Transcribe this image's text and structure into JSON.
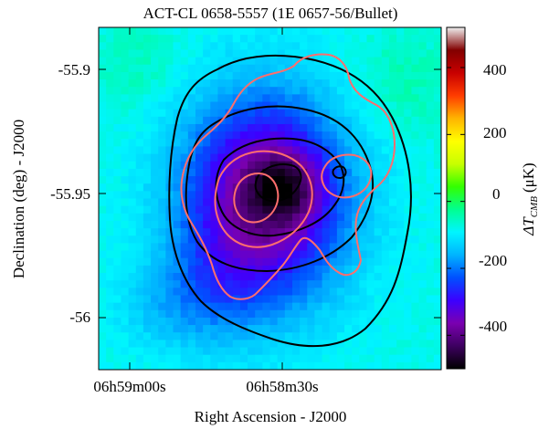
{
  "chart_data": {
    "type": "heatmap",
    "title": "ACT-CL 0658-5557 (1E 0657-56/Bullet)",
    "xlabel": "Right Ascension - J2000",
    "ylabel": "Declination (deg) - J2000",
    "x_ticks": [
      "06h59m00s",
      "06h58m30s"
    ],
    "y_ticks": [
      "-55.9",
      "-55.95",
      "-56"
    ],
    "ylim": [
      -56.02,
      -55.885
    ],
    "colorbar": {
      "label_main": "ΔT",
      "label_sub": "CMB",
      "label_unit": "(μK)",
      "range": [
        -500,
        520
      ],
      "ticks": [
        "400",
        "200",
        "0",
        "-200",
        "-400"
      ],
      "tick_values": [
        400,
        200,
        0,
        -200,
        -400
      ],
      "colormap": [
        "#000000",
        "#3d0060",
        "#7a00b0",
        "#3c00ff",
        "#0050ff",
        "#00b4ff",
        "#00f5ff",
        "#00ff90",
        "#33ff00",
        "#c8ff00",
        "#ffff00",
        "#ffb400",
        "#ff3c00",
        "#c80000",
        "#820000",
        "#f0f0f0"
      ]
    },
    "background_level_uK": -80,
    "decrement_peak_uK": -520,
    "contour_series": [
      {
        "color": "#000000",
        "levels": 4
      },
      {
        "color": "#ff6e6e",
        "levels": 4
      }
    ]
  }
}
